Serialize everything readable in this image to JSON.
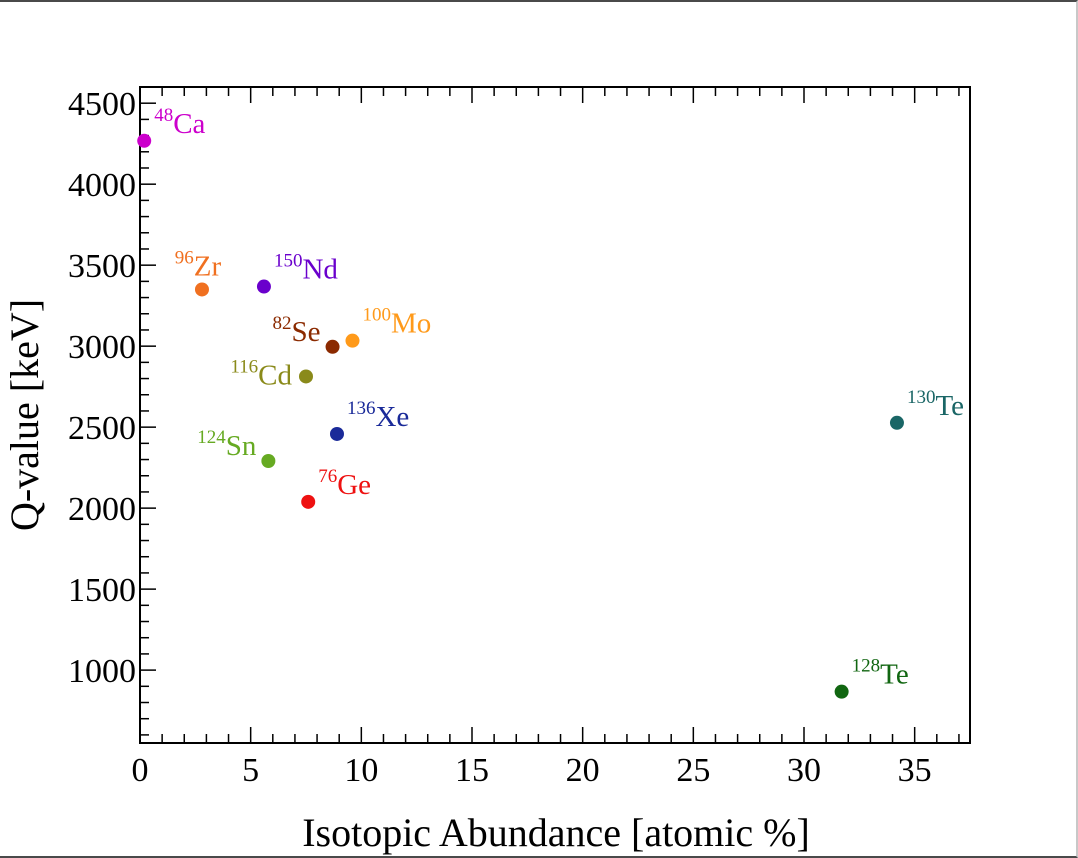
{
  "chart_data": {
    "type": "scatter",
    "title": "",
    "xlabel": "Isotopic Abundance [atomic %]",
    "ylabel": "Q-value [keV]",
    "xlim": [
      0,
      37.5
    ],
    "ylim": [
      550,
      4600
    ],
    "x_ticks": [
      "0",
      "5",
      "10",
      "15",
      "20",
      "25",
      "30",
      "35"
    ],
    "y_ticks": [
      "1000",
      "1500",
      "2000",
      "2500",
      "3000",
      "3500",
      "4000",
      "4500"
    ],
    "grid": false,
    "legend": "none",
    "points": [
      {
        "mass": "48",
        "symbol": "Ca",
        "x": 0.19,
        "y": 4268,
        "color": "#cc00cc",
        "label_pos": "upper-right"
      },
      {
        "mass": "96",
        "symbol": "Zr",
        "x": 2.8,
        "y": 3350,
        "color": "#f07020",
        "label_pos": "above"
      },
      {
        "mass": "150",
        "symbol": "Nd",
        "x": 5.6,
        "y": 3368,
        "color": "#6a00cc",
        "label_pos": "upper-right"
      },
      {
        "mass": "82",
        "symbol": "Se",
        "x": 8.7,
        "y": 2996,
        "color": "#8b2a00",
        "label_pos": "upper-left"
      },
      {
        "mass": "100",
        "symbol": "Mo",
        "x": 9.6,
        "y": 3034,
        "color": "#ff9a1a",
        "label_pos": "upper-right"
      },
      {
        "mass": "116",
        "symbol": "Cd",
        "x": 7.5,
        "y": 2813,
        "color": "#8a8a1a",
        "label_pos": "left"
      },
      {
        "mass": "136",
        "symbol": "Xe",
        "x": 8.9,
        "y": 2458,
        "color": "#1a2a99",
        "label_pos": "upper-right"
      },
      {
        "mass": "124",
        "symbol": "Sn",
        "x": 5.8,
        "y": 2291,
        "color": "#66aa22",
        "label_pos": "upper-left"
      },
      {
        "mass": "76",
        "symbol": "Ge",
        "x": 7.6,
        "y": 2039,
        "color": "#ee1111",
        "label_pos": "upper-right"
      },
      {
        "mass": "130",
        "symbol": "Te",
        "x": 34.2,
        "y": 2527,
        "color": "#1a6666",
        "label_pos": "upper-right"
      },
      {
        "mass": "128",
        "symbol": "Te",
        "x": 31.7,
        "y": 867,
        "color": "#116611",
        "label_pos": "upper-right"
      }
    ]
  }
}
